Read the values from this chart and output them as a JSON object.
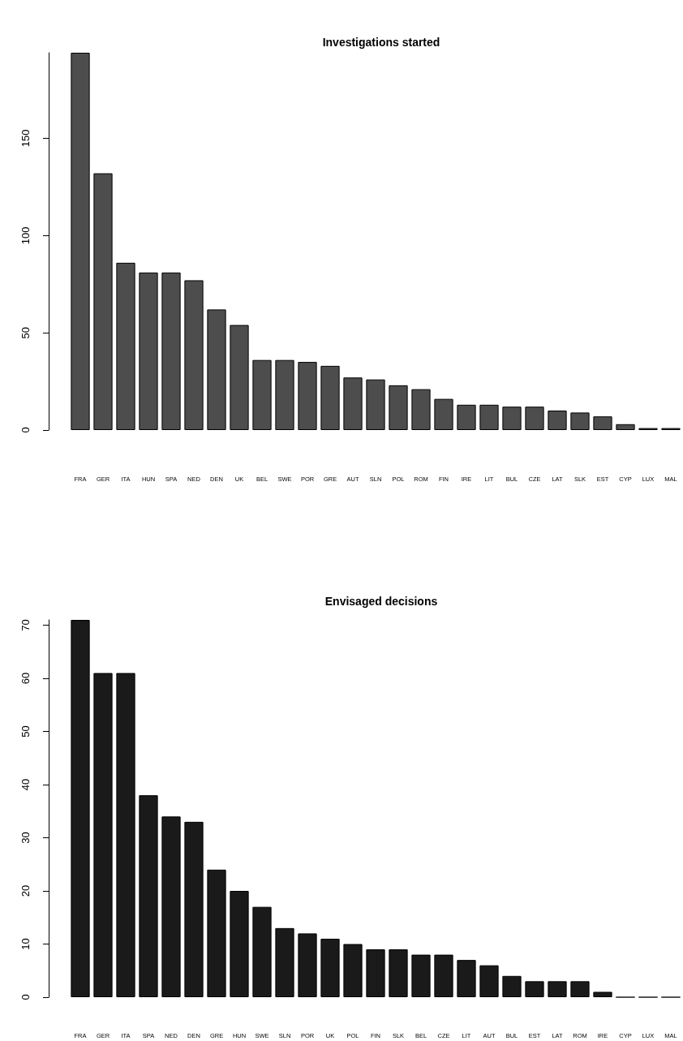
{
  "chart_data": [
    {
      "type": "bar",
      "title": "Investigations started",
      "categories": [
        "FRA",
        "GER",
        "ITA",
        "HUN",
        "SPA",
        "NED",
        "DEN",
        "UK",
        "BEL",
        "SWE",
        "POR",
        "GRE",
        "AUT",
        "SLN",
        "POL",
        "ROM",
        "FIN",
        "IRE",
        "LIT",
        "BUL",
        "CZE",
        "LAT",
        "SLK",
        "EST",
        "CYP",
        "LUX",
        "MAL"
      ],
      "values": [
        194,
        132,
        86,
        81,
        81,
        77,
        62,
        54,
        36,
        36,
        35,
        33,
        27,
        26,
        23,
        21,
        16,
        13,
        13,
        12,
        12,
        10,
        9,
        7,
        3,
        1,
        1
      ],
      "color": "#4d4d4d",
      "ylim": [
        0,
        194
      ],
      "yticks": [
        0,
        50,
        100,
        150
      ]
    },
    {
      "type": "bar",
      "title": "Envisaged decisions",
      "categories": [
        "FRA",
        "GER",
        "ITA",
        "SPA",
        "NED",
        "DEN",
        "GRE",
        "HUN",
        "SWE",
        "SLN",
        "POR",
        "UK",
        "POL",
        "FIN",
        "SLK",
        "BEL",
        "CZE",
        "LIT",
        "AUT",
        "BUL",
        "EST",
        "LAT",
        "ROM",
        "IRE",
        "CYP",
        "LUX",
        "MAL"
      ],
      "values": [
        71,
        61,
        61,
        38,
        34,
        33,
        24,
        20,
        17,
        13,
        12,
        11,
        10,
        9,
        9,
        8,
        8,
        7,
        6,
        4,
        3,
        3,
        3,
        1,
        0,
        0,
        0
      ],
      "color": "#1a1a1a",
      "ylim": [
        0,
        71
      ],
      "yticks": [
        0,
        10,
        20,
        30,
        40,
        50,
        60,
        70
      ]
    }
  ]
}
